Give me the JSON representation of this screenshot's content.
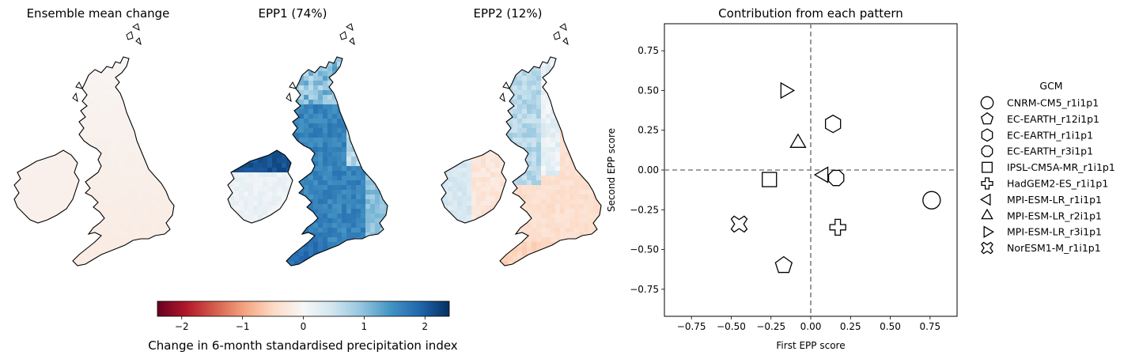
{
  "maps": [
    {
      "title": "Ensemble mean change",
      "field": "mean"
    },
    {
      "title": "EPP1 (74%)",
      "field": "epp1"
    },
    {
      "title": "EPP2 (12%)",
      "field": "epp2"
    }
  ],
  "colorbar": {
    "label": "Change in 6-month standardised precipitation index",
    "ticks": [
      "−2",
      "−1",
      "0",
      "1",
      "2"
    ],
    "tick_values": [
      -2,
      -1,
      0,
      1,
      2
    ],
    "range": [
      -2.4,
      2.4
    ],
    "colormap": "RdBu",
    "low_color": "#67001f",
    "mid_color": "#f7f7f7",
    "high_color": "#053061"
  },
  "chart_data": {
    "type": "scatter",
    "title": "Contribution from each pattern",
    "xlabel": "First EPP score",
    "ylabel": "Second EPP score",
    "xlim": [
      -0.92,
      0.92
    ],
    "ylim": [
      -0.92,
      0.92
    ],
    "xticks": [
      -0.75,
      -0.5,
      -0.25,
      0.0,
      0.25,
      0.5,
      0.75
    ],
    "yticks": [
      -0.75,
      -0.5,
      -0.25,
      0.0,
      0.25,
      0.5,
      0.75
    ],
    "xtick_labels": [
      "−0.75",
      "−0.50",
      "−0.25",
      "0.00",
      "0.25",
      "0.50",
      "0.75"
    ],
    "ytick_labels": [
      "−0.75",
      "−0.50",
      "−0.25",
      "0.00",
      "0.25",
      "0.50",
      "0.75"
    ],
    "reference_lines": {
      "x": 0,
      "y": 0,
      "style": "dashed",
      "color": "#808080"
    },
    "legend": {
      "title": "GCM",
      "placement": "outside-right"
    },
    "points": [
      {
        "name": "CNRM-CM5_r1i1p1",
        "marker": "circle",
        "x": 0.76,
        "y": -0.19
      },
      {
        "name": "EC-EARTH_r12i1p1",
        "marker": "pentagon",
        "x": -0.17,
        "y": -0.6
      },
      {
        "name": "EC-EARTH_r1i1p1",
        "marker": "hexagon",
        "x": 0.14,
        "y": 0.29
      },
      {
        "name": "EC-EARTH_r3i1p1",
        "marker": "octagon",
        "x": 0.16,
        "y": -0.05
      },
      {
        "name": "IPSL-CM5A-MR_r1i1p1",
        "marker": "square",
        "x": -0.26,
        "y": -0.06
      },
      {
        "name": "HadGEM2-ES_r1i1p1",
        "marker": "plus",
        "x": 0.17,
        "y": -0.36
      },
      {
        "name": "MPI-ESM-LR_r1i1p1",
        "marker": "triangle-left",
        "x": 0.08,
        "y": -0.03
      },
      {
        "name": "MPI-ESM-LR_r2i1p1",
        "marker": "triangle-up",
        "x": -0.08,
        "y": 0.17
      },
      {
        "name": "MPI-ESM-LR_r3i1p1",
        "marker": "triangle-right",
        "x": -0.16,
        "y": 0.5
      },
      {
        "name": "NorESM1-M_r1i1p1",
        "marker": "x-filled",
        "x": -0.45,
        "y": -0.34
      }
    ]
  }
}
